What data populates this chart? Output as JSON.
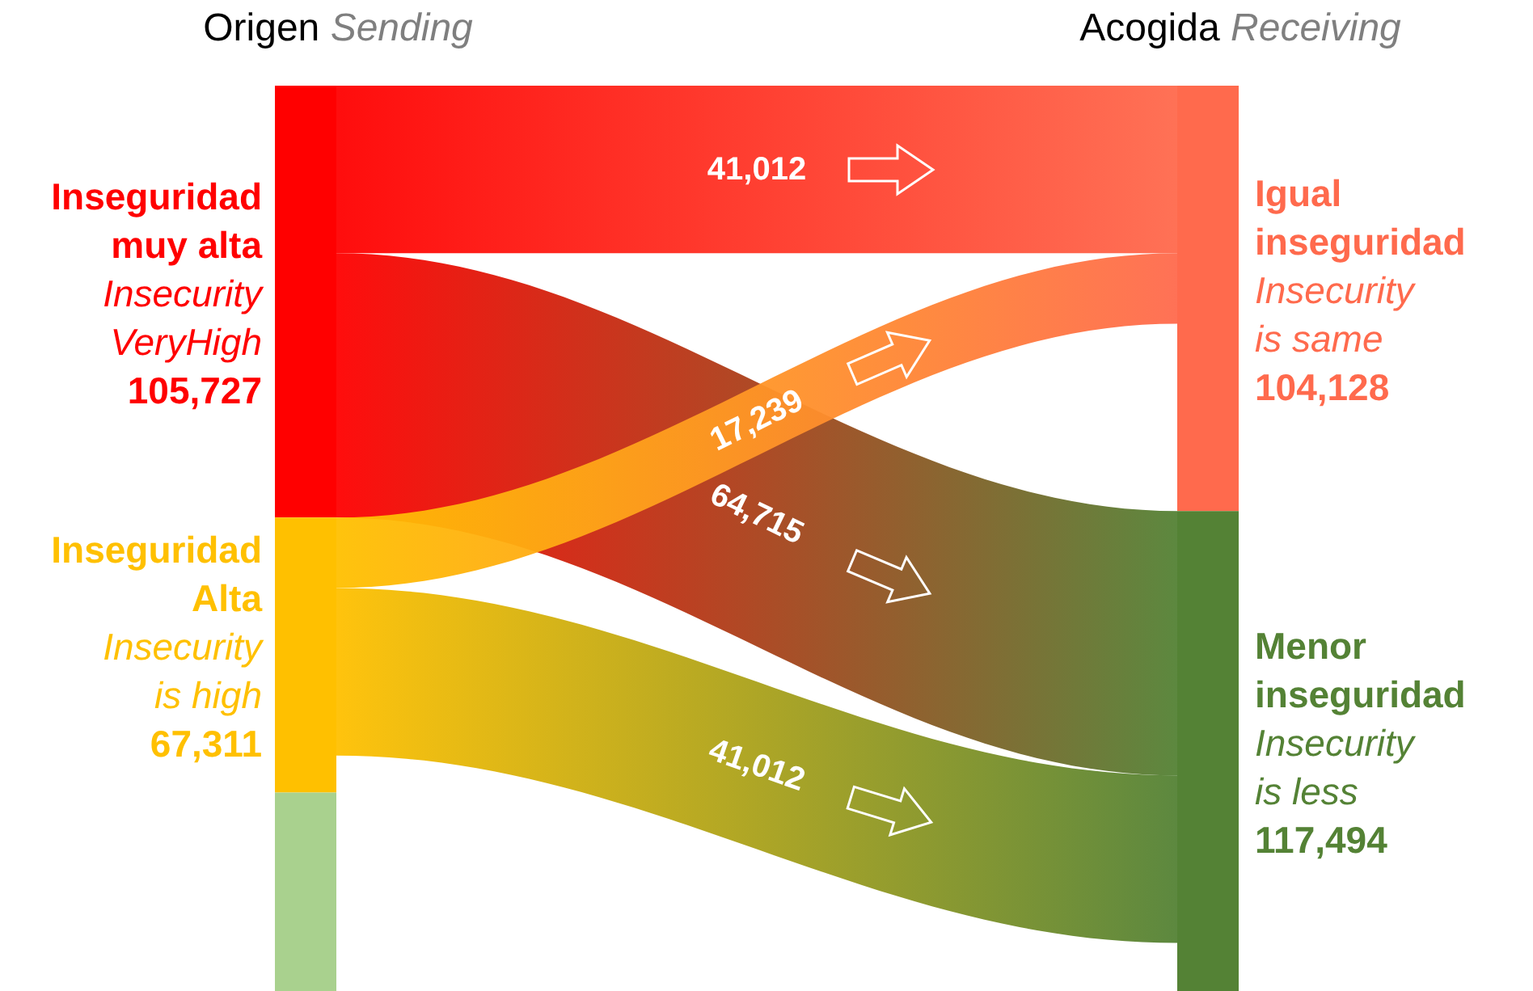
{
  "chart_data": {
    "type": "other",
    "categories": [
      "Inseguridad muy alta",
      "Inseguridad Alta",
      null,
      "Igual inseguridad",
      "Menor inseguridad"
    ],
    "values": [
      105727,
      67311,
      null,
      104128,
      117494
    ],
    "value_labels": [
      "105,727",
      "67,311",
      null,
      "104,128",
      "117,494"
    ],
    "colors": [
      "#ff0000",
      "#ffc000",
      "#a9d18e",
      "#ff6a4d",
      "#548235"
    ],
    "series": [
      {
        "values": [
          null,
          null,
          null,
          41012,
          64715
        ],
        "value_labels": [
          null,
          null,
          null,
          "41,012",
          "64,715"
        ]
      },
      {
        "values": [
          null,
          null,
          null,
          17239,
          41012
        ],
        "value_labels": [
          null,
          null,
          null,
          "17,239",
          "41,012"
        ]
      }
    ],
    "annotations": [
      "Origen",
      "Sending",
      "Acogida",
      "Receiving",
      {
        "text": "Insecurity VeryHigh",
        "x": "Inseguridad muy alta"
      },
      {
        "text": "Insecurity is high",
        "x": "Inseguridad Alta"
      },
      {
        "text": "Insecurity is same",
        "x": "Igual inseguridad"
      },
      {
        "text": "Insecurity is less",
        "x": "Menor inseguridad"
      }
    ]
  }
}
